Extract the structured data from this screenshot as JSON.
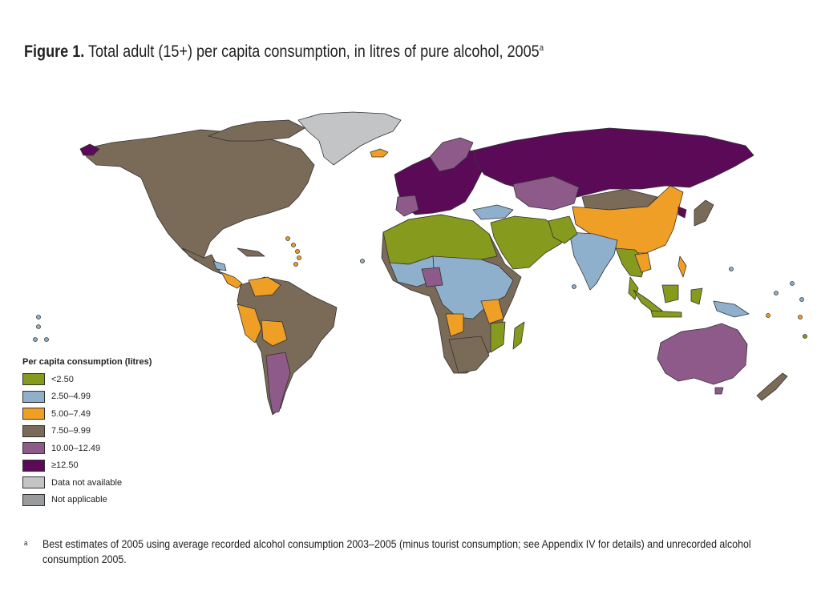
{
  "figure": {
    "label": "Figure 1.",
    "title": "Total adult (15+) per capita consumption, in litres of pure alcohol, 2005",
    "title_superscript": "a"
  },
  "legend": {
    "title": "Per capita consumption (litres)",
    "items": [
      {
        "label": "<2.50",
        "color": "#869a1d"
      },
      {
        "label": "2.50–4.99",
        "color": "#8fb0cc"
      },
      {
        "label": "5.00–7.49",
        "color": "#f09f26"
      },
      {
        "label": "7.50–9.99",
        "color": "#7a6a58"
      },
      {
        "label": "10.00–12.49",
        "color": "#8e5a89"
      },
      {
        "label": "≥12.50",
        "color": "#5b0a58"
      },
      {
        "label": "Data not available",
        "color": "#c3c4c6"
      },
      {
        "label": "Not applicable",
        "color": "#9a9b9d"
      }
    ]
  },
  "footnote": {
    "marker": "a",
    "text": "Best estimates of 2005 using average recorded alcohol consumption 2003–2005 (minus tourist consumption; see Appendix IV for details) and unrecorded alcohol consumption 2005."
  }
}
